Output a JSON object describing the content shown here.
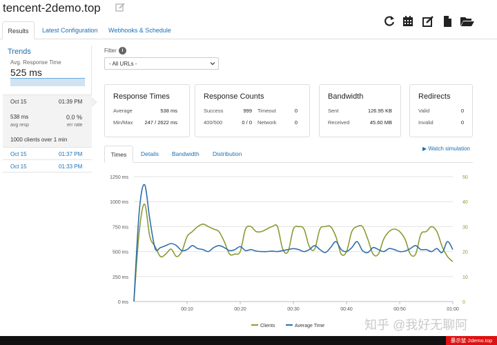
{
  "app": {
    "title": "tencent-2demo.top"
  },
  "tabs": [
    "Results",
    "Latest Configuration",
    "Webhooks & Schedule"
  ],
  "sidebar": {
    "trends": "Trends",
    "avg_label": "Avg. Response Time",
    "avg_value": "525 ms",
    "selected": {
      "date": "Oct 15",
      "time": "01:39 PM",
      "resp": "538 ms",
      "resp_label": "avg resp",
      "err": "0.0 %",
      "err_label": "err rate",
      "clients": "1000 clients over 1 min"
    },
    "runs": [
      {
        "date": "Oct 15",
        "time": "01:37 PM"
      },
      {
        "date": "Oct 15",
        "time": "01:33 PM"
      }
    ]
  },
  "filter": {
    "label": "Filter",
    "info": "i",
    "value": "- All URLs -"
  },
  "cards": {
    "response_times": {
      "title": "Response Times",
      "average_label": "Average",
      "average": "538 ms",
      "minmax_label": "Min/Max",
      "minmax": "247 / 2622 ms"
    },
    "response_counts": {
      "title": "Response Counts",
      "success_label": "Success",
      "success": "999",
      "timeout_label": "Timeout",
      "timeout": "0",
      "s400_label": "400/500",
      "s400": "0 / 0",
      "network_label": "Network",
      "network": "0"
    },
    "bandwidth": {
      "title": "Bandwidth",
      "sent_label": "Sent",
      "sent": "126.95 KB",
      "received_label": "Received",
      "received": "45.60 MB"
    },
    "redirects": {
      "title": "Redirects",
      "valid_label": "Valid",
      "valid": "0",
      "invalid_label": "Invalid",
      "invalid": "0"
    }
  },
  "chart_tabs": [
    "Times",
    "Details",
    "Bandwidth",
    "Distribution"
  ],
  "watch": "Watch simulation",
  "chart_data": {
    "type": "line",
    "x_ticks": [
      "00:10",
      "00:20",
      "00:30",
      "00:40",
      "00:50",
      "01:00"
    ],
    "y_left_ticks": [
      "0 ms",
      "250 ms",
      "500 ms",
      "750 ms",
      "1000 ms",
      "1250 ms"
    ],
    "y_right_ticks": [
      "0",
      "10",
      "20",
      "30",
      "40",
      "50"
    ],
    "ylim_left": [
      0,
      1250
    ],
    "ylim_right": [
      0,
      50
    ],
    "xlim": [
      0,
      60
    ],
    "grid": true,
    "legend_position": "bottom",
    "series": [
      {
        "name": "Clients",
        "axis": "right",
        "color": "#8a9a32",
        "x": [
          0,
          1,
          2,
          3,
          4,
          5,
          6,
          7,
          8,
          9,
          10,
          11,
          12,
          13,
          14,
          15,
          16,
          17,
          18,
          19,
          20,
          21,
          22,
          23,
          24,
          25,
          26,
          27,
          28,
          29,
          30,
          31,
          32,
          33,
          34,
          35,
          36,
          37,
          38,
          39,
          40,
          41,
          42,
          43,
          44,
          45,
          46,
          47,
          48,
          49,
          50,
          51,
          52,
          53,
          54,
          55,
          56,
          57,
          58,
          59,
          60
        ],
        "values": [
          0,
          28,
          39,
          26,
          22,
          18,
          19,
          21,
          18,
          20,
          26,
          28,
          30,
          31,
          30,
          29,
          28,
          24,
          19,
          19,
          20,
          29,
          30,
          28,
          28,
          29,
          30,
          30,
          21,
          20,
          29,
          30,
          29,
          22,
          21,
          29,
          30,
          30,
          26,
          19,
          20,
          28,
          30,
          30,
          25,
          19,
          19,
          25,
          28,
          29,
          28,
          25,
          19,
          19,
          27,
          28,
          30,
          28,
          22,
          18,
          16
        ]
      },
      {
        "name": "Average Time",
        "axis": "left",
        "color": "#2f6eaa",
        "x": [
          0,
          1,
          2,
          3,
          4,
          5,
          6,
          7,
          8,
          9,
          10,
          11,
          12,
          13,
          14,
          15,
          16,
          17,
          18,
          19,
          20,
          21,
          22,
          23,
          24,
          25,
          26,
          27,
          28,
          29,
          30,
          31,
          32,
          33,
          34,
          35,
          36,
          37,
          38,
          39,
          40,
          41,
          42,
          43,
          44,
          45,
          46,
          47,
          48,
          49,
          50,
          51,
          52,
          53,
          54,
          55,
          56,
          57,
          58,
          59,
          60
        ],
        "values": [
          0,
          900,
          1170,
          820,
          530,
          540,
          560,
          580,
          560,
          510,
          520,
          560,
          530,
          520,
          500,
          540,
          560,
          540,
          510,
          520,
          550,
          510,
          520,
          505,
          500,
          500,
          505,
          500,
          510,
          520,
          530,
          520,
          500,
          520,
          560,
          520,
          490,
          540,
          600,
          520,
          500,
          540,
          600,
          510,
          490,
          540,
          520,
          500,
          530,
          520,
          500,
          505,
          530,
          560,
          520,
          520,
          500,
          530,
          490,
          600,
          520
        ]
      }
    ]
  },
  "watermark": {
    "text": "知乎 @我好无聊阿",
    "badge": "暴示鼠·2demo.top"
  }
}
